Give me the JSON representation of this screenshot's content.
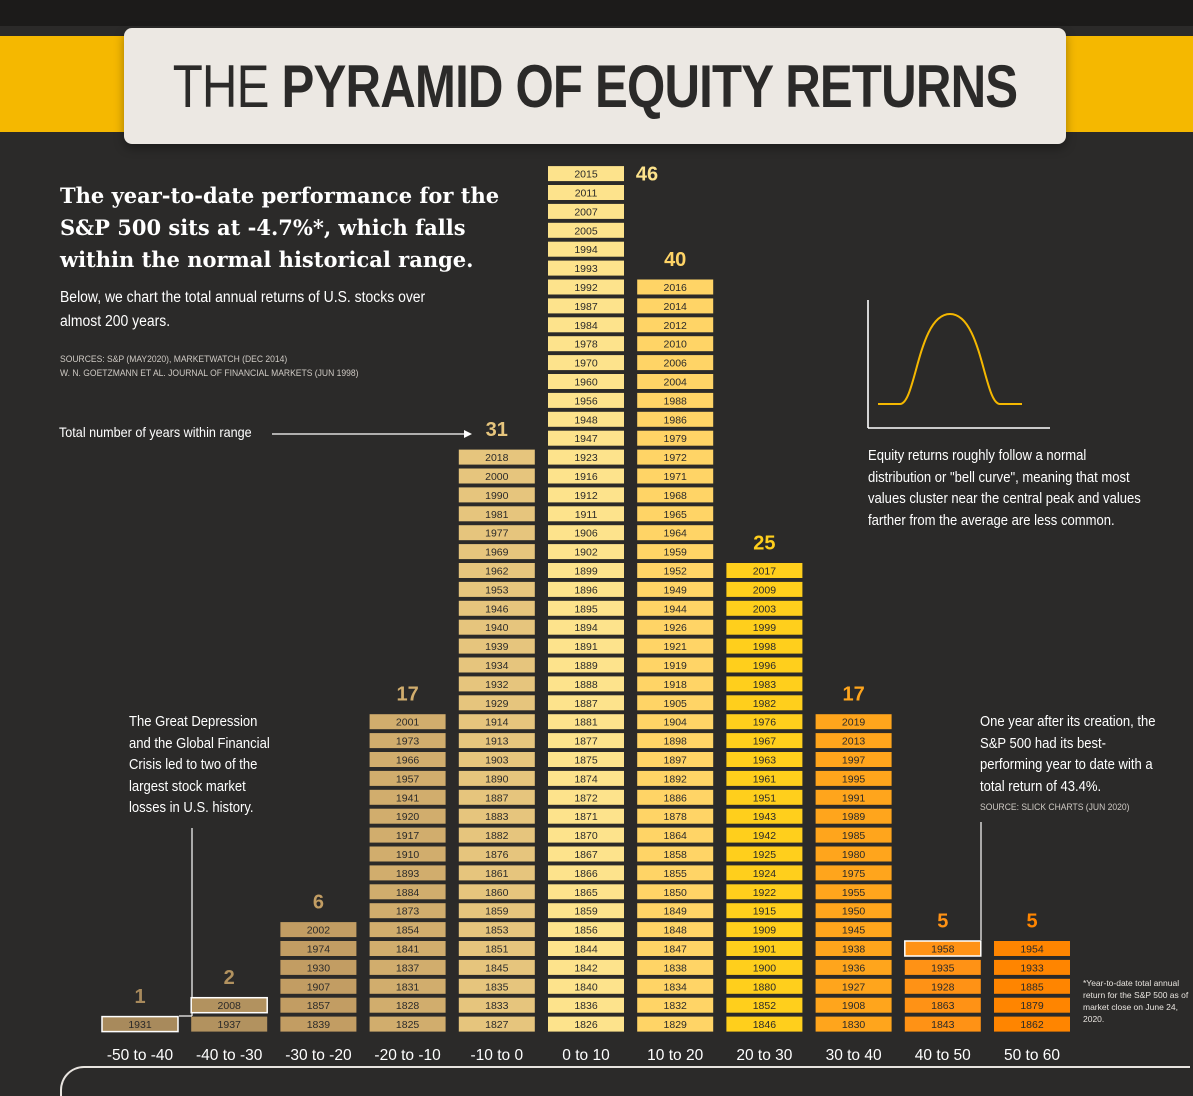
{
  "title": {
    "light": "THE ",
    "bold": "PYRAMID OF EQUITY RETURNS"
  },
  "headline": "The year-to-date performance for the S&P 500 sits at -4.7%*, which falls within the normal historical range.",
  "subline": "Below, we chart the total annual returns of U.S. stocks over almost 200 years.",
  "sources": [
    "SOURCES: S&P (MAY2020), MARKETWATCH (DEC 2014)",
    "W. N. GOETZMANN ET AL. JOURNAL OF FINANCIAL MARKETS (JUN 1998)"
  ],
  "total_label": "Total number of years within range",
  "bell_note": "Equity returns roughly follow a normal distribution or \"bell curve\", meaning that most values cluster near the central peak and values farther from the average are less common.",
  "depression_note": "The Great Depression and the Global Financial Crisis led to two of the largest stock market losses in U.S. history.",
  "best_note": "One year after its creation, the S&P 500 had its best-performing year to date with a total return of 43.4%.",
  "best_source": "SOURCE: SLICK CHARTS (JUN 2020)",
  "footnote": "*Year-to-date total annual return for the S&P 500 as of market close on June 24, 2020.",
  "colors": {
    "background": "#2b2a29",
    "accent": "#f5b800",
    "bar_text": "#2b2a29"
  },
  "chart_data": {
    "type": "bar",
    "title": "THE PYRAMID OF EQUITY RETURNS",
    "xlabel": "",
    "ylabel": "",
    "categories": [
      "-50 to -40",
      "-40 to -30",
      "-30 to -20",
      "-20 to -10",
      "-10 to 0",
      "0 to 10",
      "10 to 20",
      "20 to 30",
      "30 to 40",
      "40 to 50",
      "50 to 60"
    ],
    "values": [
      1,
      2,
      6,
      17,
      31,
      46,
      40,
      25,
      17,
      5,
      5
    ],
    "colors": [
      "#a88a5c",
      "#b2925f",
      "#c29d63",
      "#d1ad6d",
      "#e6c57d",
      "#fde38c",
      "#ffd466",
      "#ffcf1c",
      "#ffa51c",
      "#ff9215",
      "#ff8500"
    ],
    "years": [
      [
        "1931"
      ],
      [
        "2008",
        "1937"
      ],
      [
        "2002",
        "1974",
        "1930",
        "1907",
        "1857",
        "1839"
      ],
      [
        "2001",
        "1973",
        "1966",
        "1957",
        "1941",
        "1920",
        "1917",
        "1910",
        "1893",
        "1884",
        "1873",
        "1854",
        "1841",
        "1837",
        "1831",
        "1828",
        "1825"
      ],
      [
        "2018",
        "2000",
        "1990",
        "1981",
        "1977",
        "1969",
        "1962",
        "1953",
        "1946",
        "1940",
        "1939",
        "1934",
        "1932",
        "1929",
        "1914",
        "1913",
        "1903",
        "1890",
        "1887",
        "1883",
        "1882",
        "1876",
        "1861",
        "1860",
        "1859",
        "1853",
        "1851",
        "1845",
        "1835",
        "1833",
        "1827"
      ],
      [
        "2015",
        "2011",
        "2007",
        "2005",
        "1994",
        "1993",
        "1992",
        "1987",
        "1984",
        "1978",
        "1970",
        "1960",
        "1956",
        "1948",
        "1947",
        "1923",
        "1916",
        "1912",
        "1911",
        "1906",
        "1902",
        "1899",
        "1896",
        "1895",
        "1894",
        "1891",
        "1889",
        "1888",
        "1887",
        "1881",
        "1877",
        "1875",
        "1874",
        "1872",
        "1871",
        "1870",
        "1867",
        "1866",
        "1865",
        "1859",
        "1856",
        "1844",
        "1842",
        "1840",
        "1836",
        "1826"
      ],
      [
        "2016",
        "2014",
        "2012",
        "2010",
        "2006",
        "2004",
        "1988",
        "1986",
        "1979",
        "1972",
        "1971",
        "1968",
        "1965",
        "1964",
        "1959",
        "1952",
        "1949",
        "1944",
        "1926",
        "1921",
        "1919",
        "1918",
        "1905",
        "1904",
        "1898",
        "1897",
        "1892",
        "1886",
        "1878",
        "1864",
        "1858",
        "1855",
        "1850",
        "1849",
        "1848",
        "1847",
        "1838",
        "1834",
        "1832",
        "1829"
      ],
      [
        "2017",
        "2009",
        "2003",
        "1999",
        "1998",
        "1996",
        "1983",
        "1982",
        "1976",
        "1967",
        "1963",
        "1961",
        "1951",
        "1943",
        "1942",
        "1925",
        "1924",
        "1922",
        "1915",
        "1909",
        "1901",
        "1900",
        "1880",
        "1852",
        "1846"
      ],
      [
        "2019",
        "2013",
        "1997",
        "1995",
        "1991",
        "1989",
        "1985",
        "1980",
        "1975",
        "1955",
        "1950",
        "1945",
        "1938",
        "1936",
        "1927",
        "1908",
        "1830"
      ],
      [
        "1958",
        "1935",
        "1928",
        "1863",
        "1843"
      ],
      [
        "1954",
        "1933",
        "1885",
        "1879",
        "1862"
      ]
    ],
    "highlighted_years": [
      "1931",
      "2008",
      "1958"
    ]
  }
}
